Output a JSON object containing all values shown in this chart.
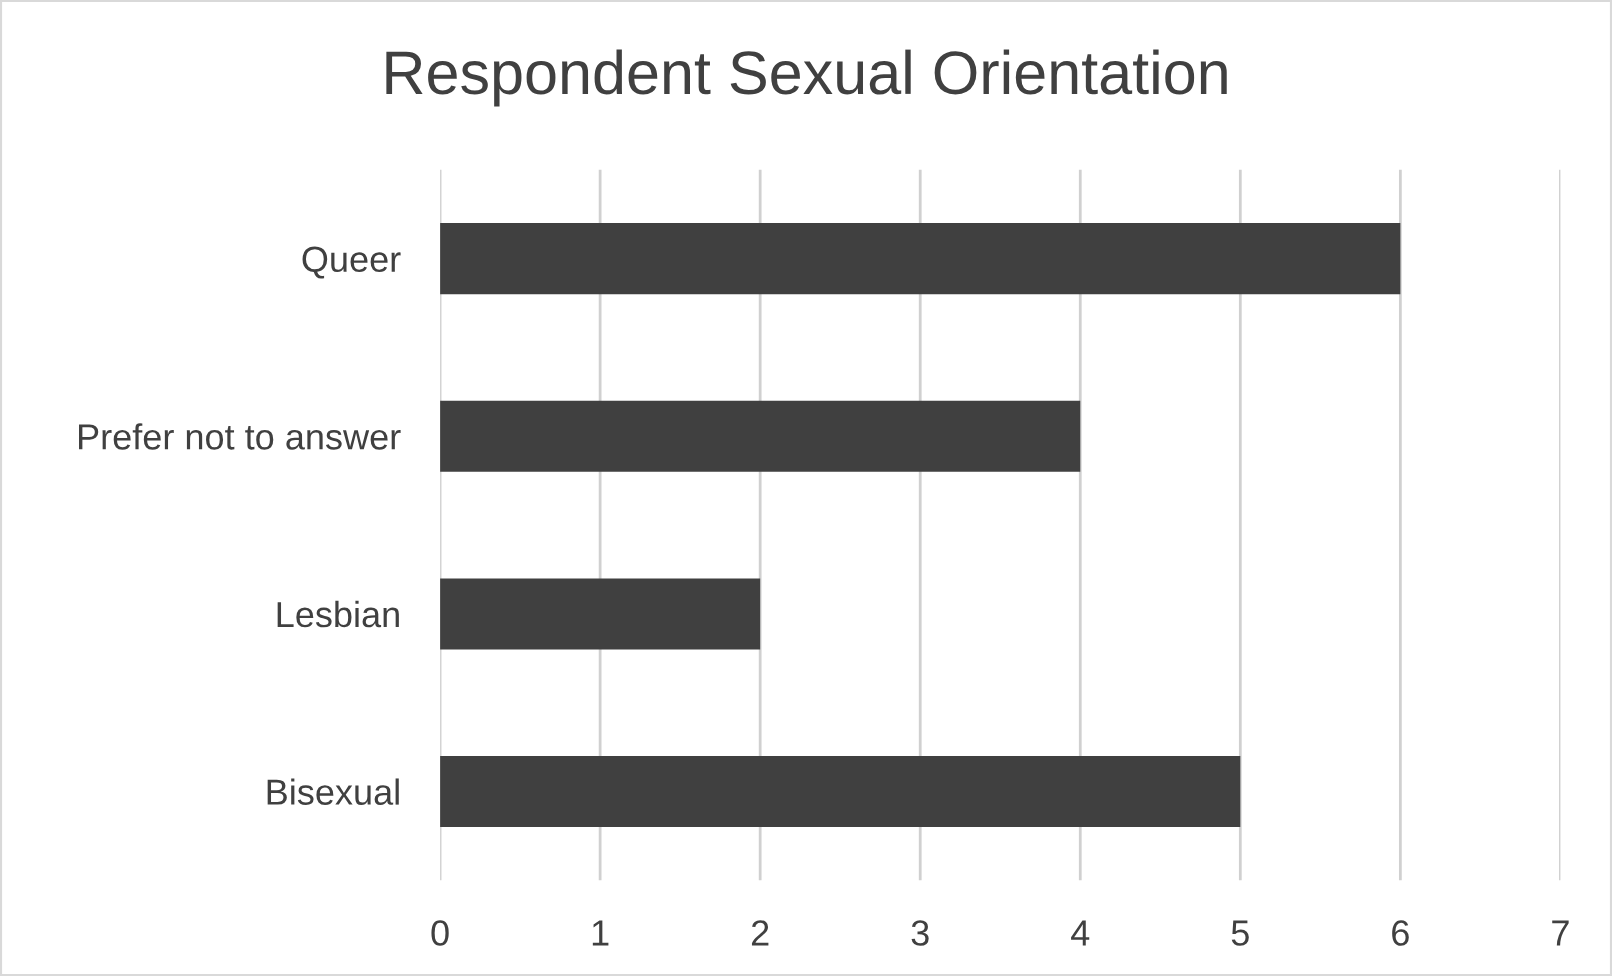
{
  "chart_data": {
    "type": "bar",
    "orientation": "horizontal",
    "title": "Respondent Sexual Orientation",
    "categories": [
      "Queer",
      "Prefer not to answer",
      "Lesbian",
      "Bisexual"
    ],
    "values": [
      6,
      4,
      2,
      5
    ],
    "color": "#404040",
    "xlim": [
      0,
      7
    ],
    "xticks": [
      0,
      1,
      2,
      3,
      4,
      5,
      6,
      7
    ],
    "grid": "x",
    "legend": false
  }
}
